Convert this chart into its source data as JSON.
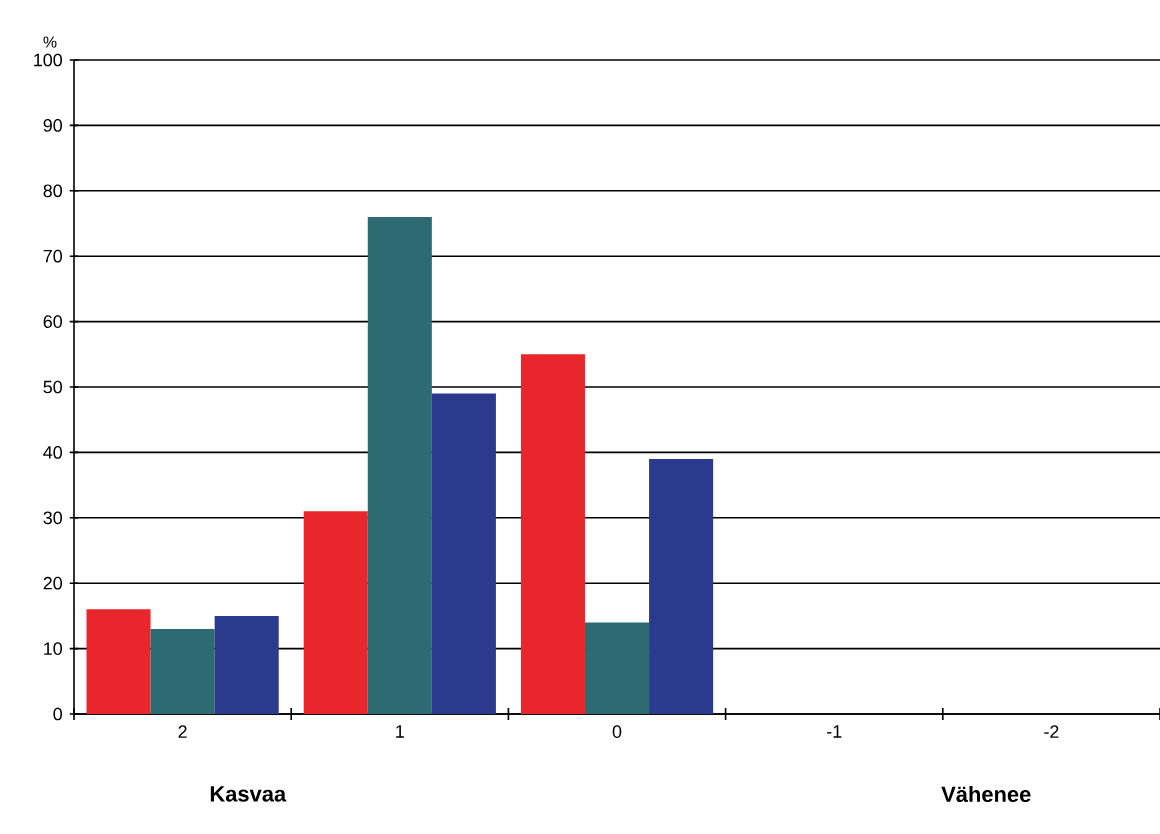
{
  "chart_data": {
    "type": "bar",
    "ylabel": "%",
    "categories": [
      "2",
      "1",
      "0",
      "-1",
      "-2"
    ],
    "series": [
      {
        "color": "#e8262b",
        "values": [
          16,
          31,
          55,
          null,
          null
        ]
      },
      {
        "color": "#2e6a72",
        "values": [
          13,
          76,
          14,
          null,
          null
        ]
      },
      {
        "color": "#2b3a8c",
        "values": [
          15,
          49,
          39,
          null,
          null
        ]
      }
    ],
    "ylim": [
      0,
      100
    ],
    "yticks": [
      0,
      10,
      20,
      30,
      40,
      50,
      60,
      70,
      80,
      90,
      100
    ],
    "grid": "y",
    "annotations": [
      "Kasvaa",
      "Vähenee"
    ]
  }
}
